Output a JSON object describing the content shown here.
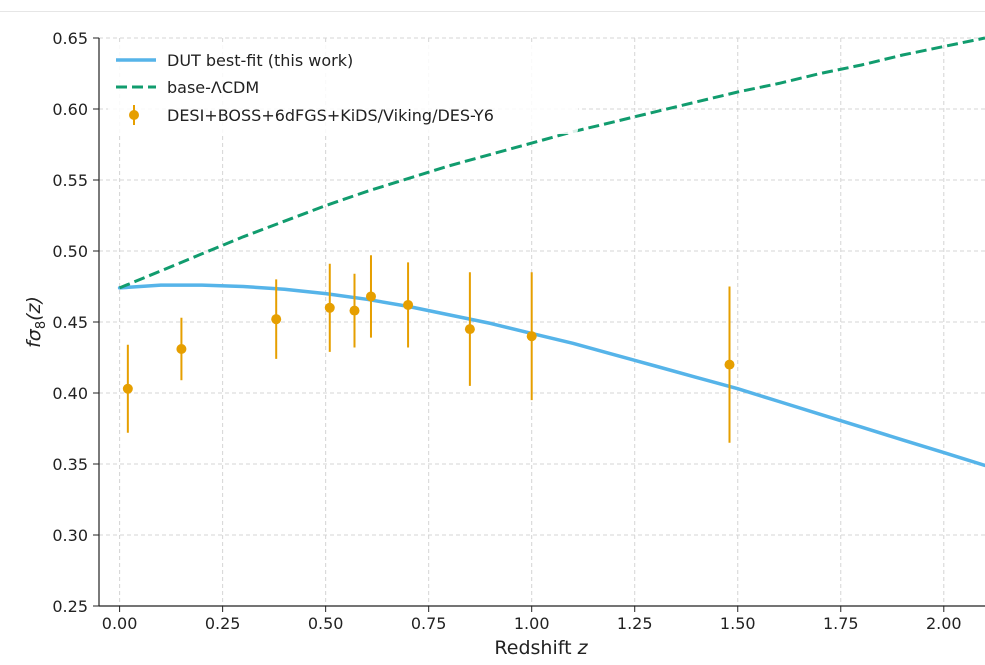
{
  "chart_data": {
    "type": "line",
    "xlabel_prefix": "Redshift ",
    "xlabel_var": "z",
    "ylabel_f": "f",
    "ylabel_sigma": "σ",
    "ylabel_sub": "8",
    "ylabel_z": "(z)",
    "xlim": [
      -0.05,
      2.1
    ],
    "ylim": [
      0.25,
      0.65
    ],
    "grid": true,
    "legend_position": "top-left",
    "xticks": [
      "0.00",
      "0.25",
      "0.50",
      "0.75",
      "1.00",
      "1.25",
      "1.50",
      "1.75",
      "2.00"
    ],
    "yticks": [
      "0.25",
      "0.30",
      "0.35",
      "0.40",
      "0.45",
      "0.50",
      "0.55",
      "0.60",
      "0.65"
    ],
    "series": [
      {
        "name": "DUT best-fit (this work)",
        "kind": "line",
        "style": "solid",
        "color": "#56b4e9",
        "x": [
          0.0,
          0.1,
          0.2,
          0.3,
          0.4,
          0.5,
          0.6,
          0.7,
          0.8,
          0.9,
          1.0,
          1.1,
          1.2,
          1.3,
          1.4,
          1.5,
          1.6,
          1.7,
          1.8,
          1.9,
          2.0,
          2.1
        ],
        "y": [
          0.474,
          0.476,
          0.476,
          0.475,
          0.473,
          0.47,
          0.466,
          0.461,
          0.455,
          0.449,
          0.442,
          0.435,
          0.427,
          0.419,
          0.411,
          0.403,
          0.394,
          0.385,
          0.376,
          0.367,
          0.358,
          0.349
        ]
      },
      {
        "name": "base-ΛCDM",
        "kind": "line",
        "style": "dashed",
        "color": "#119c6e",
        "x": [
          0.0,
          0.1,
          0.2,
          0.3,
          0.4,
          0.5,
          0.6,
          0.7,
          0.8,
          0.9,
          1.0,
          1.1,
          1.2,
          1.3,
          1.4,
          1.5,
          1.6,
          1.7,
          1.8,
          1.9,
          2.0,
          2.1
        ],
        "y": [
          0.474,
          0.486,
          0.498,
          0.51,
          0.521,
          0.532,
          0.542,
          0.551,
          0.56,
          0.568,
          0.576,
          0.584,
          0.591,
          0.598,
          0.605,
          0.612,
          0.618,
          0.625,
          0.631,
          0.638,
          0.644,
          0.65
        ]
      },
      {
        "name": "DESI+BOSS+6dFGS+KiDS/Viking/DES-Y6",
        "kind": "errorbar",
        "color": "#e69f00",
        "x": [
          0.02,
          0.15,
          0.38,
          0.51,
          0.57,
          0.61,
          0.7,
          0.85,
          1.0,
          1.48
        ],
        "y": [
          0.403,
          0.431,
          0.452,
          0.46,
          0.458,
          0.468,
          0.462,
          0.445,
          0.44,
          0.42
        ],
        "yerr": [
          0.031,
          0.022,
          0.028,
          0.031,
          0.026,
          0.029,
          0.03,
          0.04,
          0.045,
          0.055
        ]
      }
    ]
  }
}
